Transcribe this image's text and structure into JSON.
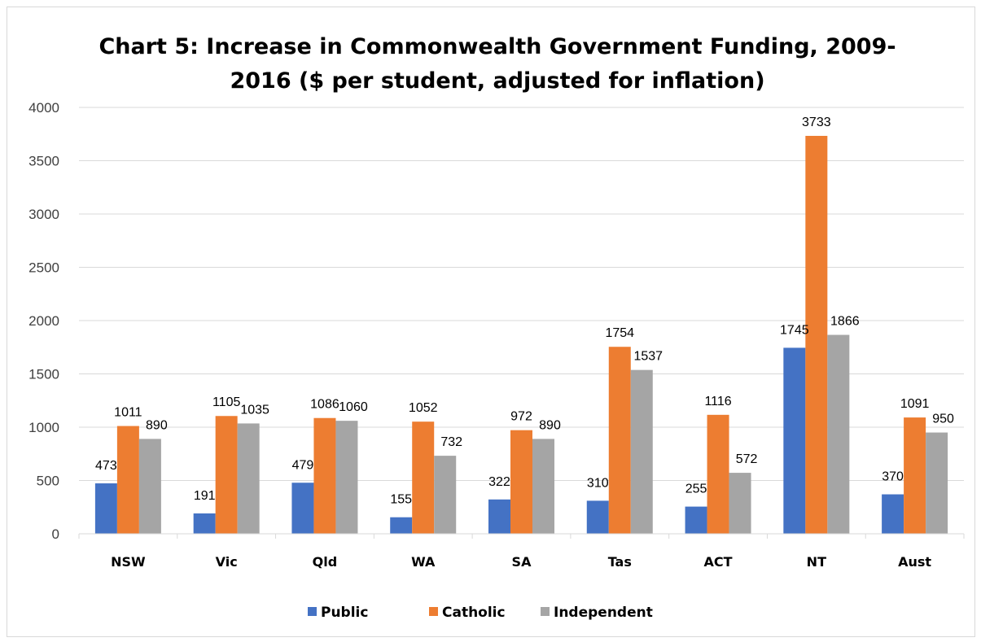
{
  "chart_data": {
    "type": "bar",
    "title_lines": [
      "Chart 5: Increase in Commonwealth Government Funding, 2009-",
      "2016 ($ per student, adjusted for inflation)"
    ],
    "categories": [
      "NSW",
      "Vic",
      "Qld",
      "WA",
      "SA",
      "Tas",
      "ACT",
      "NT",
      "Aust"
    ],
    "series": [
      {
        "name": "Public",
        "color": "#4472C4",
        "values": [
          473,
          191,
          479,
          155,
          322,
          310,
          255,
          1745,
          370
        ]
      },
      {
        "name": "Catholic",
        "color": "#ED7D31",
        "values": [
          1011,
          1105,
          1086,
          1052,
          972,
          1754,
          1116,
          3733,
          1091
        ]
      },
      {
        "name": "Independent",
        "color": "#A5A5A5",
        "values": [
          890,
          1035,
          1060,
          732,
          890,
          1537,
          572,
          1866,
          950
        ]
      }
    ],
    "ylim": [
      0,
      4000
    ],
    "yticks": [
      0,
      500,
      1000,
      1500,
      2000,
      2500,
      3000,
      3500,
      4000
    ],
    "grid": true,
    "legend_position": "bottom"
  }
}
